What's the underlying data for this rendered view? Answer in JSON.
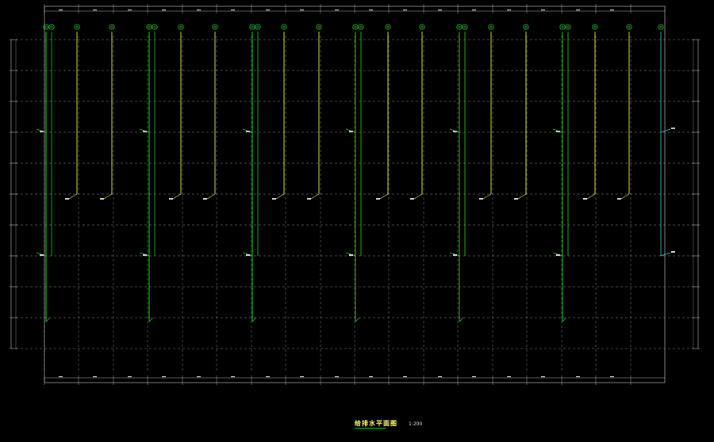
{
  "drawing": {
    "title": "给排水平面图",
    "scale": "1:200"
  },
  "colors": {
    "background": "#000000",
    "grid": "#cfcfcf",
    "border": "#d8d8d8",
    "drain_pipe": "#22cc22",
    "supply_pipe": "#e6e64a",
    "cyan_pipe": "#33cccc",
    "marker": "#33dd33"
  },
  "icons": {
    "riser_marker": "circle-plus-icon"
  }
}
